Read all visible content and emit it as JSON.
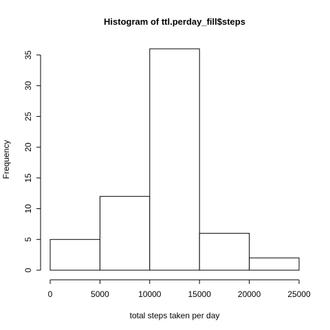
{
  "chart_data": {
    "type": "bar",
    "title": "Histogram of ttl.perday_fill$steps",
    "xlabel": "total steps taken per day",
    "ylabel": "Frequency",
    "bins": [
      {
        "start": 0,
        "end": 5000,
        "count": 5
      },
      {
        "start": 5000,
        "end": 10000,
        "count": 12
      },
      {
        "start": 10000,
        "end": 15000,
        "count": 36
      },
      {
        "start": 15000,
        "end": 20000,
        "count": 6
      },
      {
        "start": 20000,
        "end": 25000,
        "count": 2
      }
    ],
    "xlim": [
      0,
      25000
    ],
    "ylim": [
      0,
      36
    ],
    "x_ticks": [
      0,
      5000,
      10000,
      15000,
      20000,
      25000
    ],
    "y_ticks": [
      0,
      5,
      10,
      15,
      20,
      25,
      30,
      35
    ],
    "grid": false,
    "bar_fill": "#ffffff",
    "bar_stroke": "#000000"
  }
}
